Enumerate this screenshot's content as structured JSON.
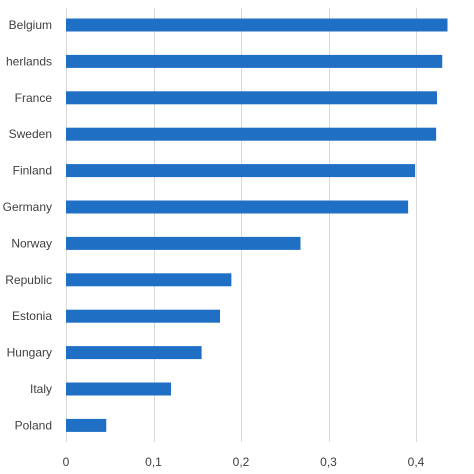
{
  "chart_data": {
    "type": "bar",
    "orientation": "horizontal",
    "categories": [
      "Belgium",
      "herlands",
      "France",
      "Sweden",
      "Finland",
      "Germany",
      "Norway",
      "Republic",
      "Estonia",
      "Hungary",
      "Italy",
      "Poland"
    ],
    "values": [
      0.436,
      0.43,
      0.424,
      0.423,
      0.399,
      0.391,
      0.268,
      0.189,
      0.176,
      0.155,
      0.12,
      0.046
    ],
    "xlim": [
      0,
      0.44
    ],
    "xticks": [
      0,
      0.1,
      0.2,
      0.3,
      0.4
    ],
    "xtick_labels": [
      "0",
      "0,1",
      "0,2",
      "0,3",
      "0,4"
    ],
    "grid": "vertical",
    "bar_color": "#1f6fc5"
  }
}
